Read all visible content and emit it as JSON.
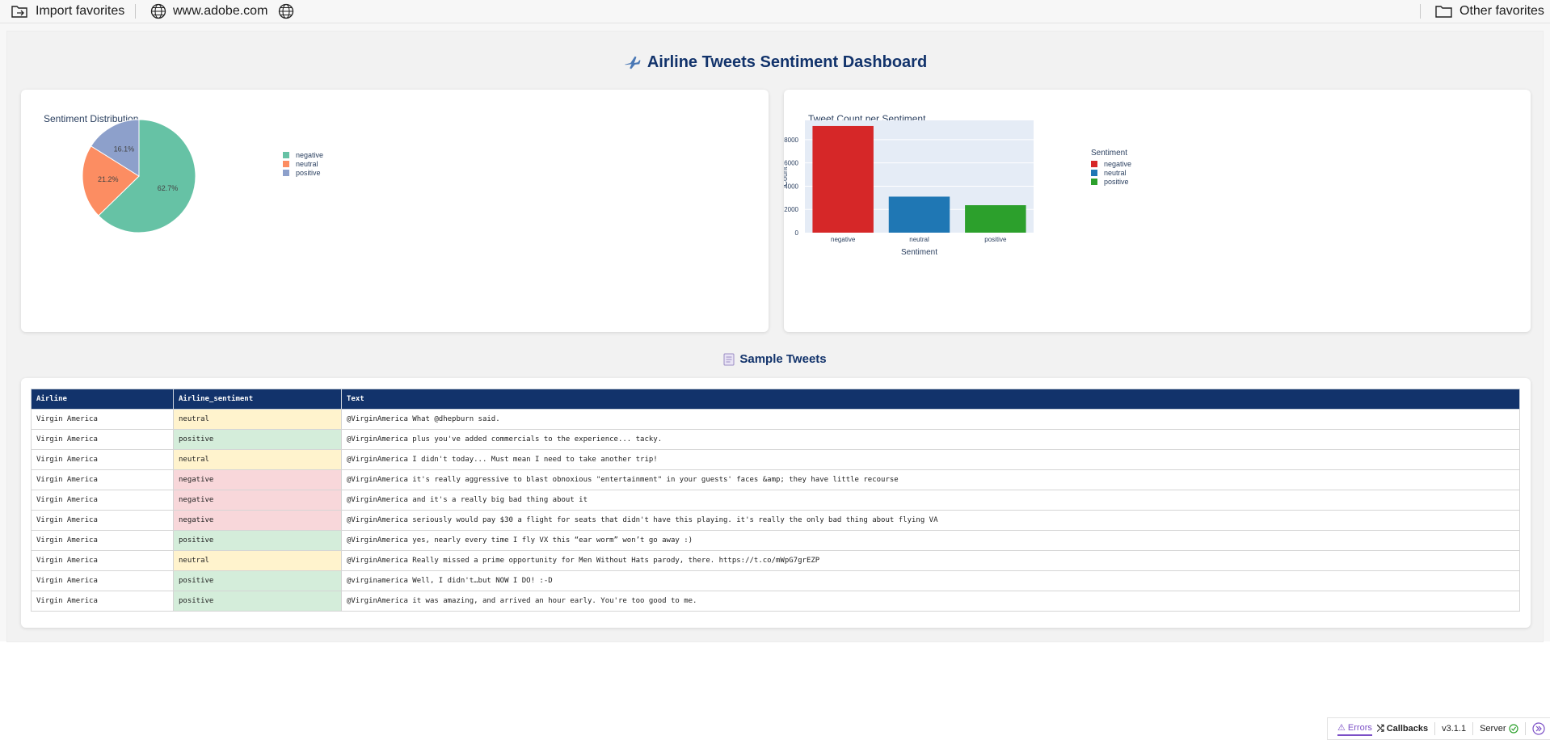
{
  "favorites": {
    "import_label": "Import favorites",
    "site_label": "www.adobe.com",
    "other_label": "Other favorites"
  },
  "dashboard": {
    "title": "Airline Tweets Sentiment Dashboard",
    "icon": "airplane-icon",
    "sample_title": "Sample Tweets",
    "sample_icon": "memo-icon"
  },
  "chart_data": [
    {
      "type": "pie",
      "title": "Sentiment Distribution",
      "labels": [
        "negative",
        "neutral",
        "positive"
      ],
      "values": [
        62.7,
        21.2,
        16.1
      ],
      "value_labels": [
        "62.7%",
        "21.2%",
        "16.1%"
      ],
      "colors": [
        "#66c2a5",
        "#fc8d62",
        "#8da0cb"
      ],
      "legend": "right"
    },
    {
      "type": "bar",
      "title": "Tweet Count per Sentiment",
      "categories": [
        "negative",
        "neutral",
        "positive"
      ],
      "values": [
        9178,
        3099,
        2363
      ],
      "colors": [
        "#d62728",
        "#1f77b4",
        "#2ca02c"
      ],
      "xlabel": "Sentiment",
      "ylabel": "Count",
      "yticks": [
        0,
        2000,
        4000,
        6000,
        8000
      ],
      "ylim": [
        0,
        9661
      ],
      "legend_title": "Sentiment",
      "legend": "right"
    }
  ],
  "table": {
    "headers": [
      "Airline",
      "Airline_sentiment",
      "Text"
    ],
    "rows": [
      [
        "Virgin America",
        "neutral",
        "@VirginAmerica What @dhepburn said."
      ],
      [
        "Virgin America",
        "positive",
        "@VirginAmerica plus you've added commercials to the experience... tacky."
      ],
      [
        "Virgin America",
        "neutral",
        "@VirginAmerica I didn't today... Must mean I need to take another trip!"
      ],
      [
        "Virgin America",
        "negative",
        "@VirginAmerica it's really aggressive to blast obnoxious \"entertainment\" in your guests' faces &amp; they have little recourse"
      ],
      [
        "Virgin America",
        "negative",
        "@VirginAmerica and it's a really big bad thing about it"
      ],
      [
        "Virgin America",
        "negative",
        "@VirginAmerica seriously would pay $30 a flight for seats that didn't have this playing. it's really the only bad thing about flying VA"
      ],
      [
        "Virgin America",
        "positive",
        "@VirginAmerica yes, nearly every time I fly VX this “ear worm” won’t go away :)"
      ],
      [
        "Virgin America",
        "neutral",
        "@VirginAmerica Really missed a prime opportunity for Men Without Hats parody, there. https://t.co/mWpG7grEZP"
      ],
      [
        "Virgin America",
        "positive",
        "@virginamerica Well, I didn't…but NOW I DO! :-D"
      ],
      [
        "Virgin America",
        "positive",
        "@VirginAmerica it was amazing, and arrived an hour early. You're too good to me."
      ]
    ]
  },
  "debug": {
    "errors_label": "Errors",
    "callbacks_label": "Callbacks",
    "version": "v3.1.1",
    "server_label": "Server"
  }
}
